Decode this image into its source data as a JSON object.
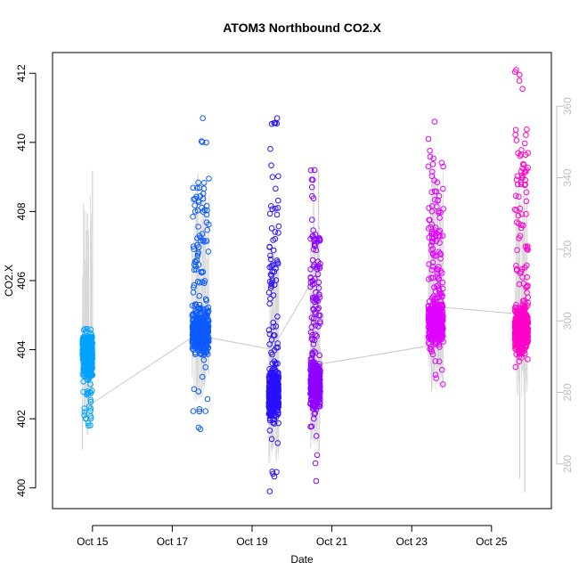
{
  "chart_data": {
    "type": "scatter",
    "title": "ATOM3 Northbound CO2.X",
    "xlabel": "Date",
    "ylabel": "CO2.X",
    "x_ticks": [
      "Oct 15",
      "Oct 17",
      "Oct 19",
      "Oct 21",
      "Oct 23",
      "Oct 25"
    ],
    "x_range": [
      "2016-10-14 00:00",
      "2016-10-26 12:00"
    ],
    "ylim": [
      399.4,
      412.6
    ],
    "y_ticks": [
      400,
      402,
      404,
      406,
      408,
      410,
      412
    ],
    "y2_ticks": [
      260,
      280,
      300,
      320,
      340,
      360
    ],
    "y2_range": [
      247.5,
      375
    ],
    "y2_color": "#bdbdbd",
    "grid": false,
    "series": [
      {
        "color": "#00a2ff",
        "segment": {
          "start": "2016-10-14 18:00",
          "end": "2016-10-15 00:00"
        },
        "y_range": [
          401.8,
          404.6
        ],
        "y_center": 403.8
      },
      {
        "color": "#0d5bff",
        "segment": {
          "start": "2016-10-17 12:00",
          "end": "2016-10-17 22:00"
        },
        "y_range": [
          401.7,
          410.7
        ],
        "y_center": 404.5
      },
      {
        "color": "#2a10ff",
        "segment": {
          "start": "2016-10-19 10:00",
          "end": "2016-10-19 16:00"
        },
        "y_range": [
          399.9,
          410.7
        ],
        "y_center": 402.7
      },
      {
        "color": "#8e00ff",
        "segment": {
          "start": "2016-10-20 11:00",
          "end": "2016-10-20 17:00"
        },
        "y_range": [
          400.2,
          409.2
        ],
        "y_center": 403.0
      },
      {
        "color": "#e000ff",
        "segment": {
          "start": "2016-10-23 10:00",
          "end": "2016-10-23 19:00"
        },
        "y_range": [
          403.0,
          410.6
        ],
        "y_center": 404.8
      },
      {
        "color": "#ff00c8",
        "segment": {
          "start": "2016-10-25 14:00",
          "end": "2016-10-25 22:00"
        },
        "y_range": [
          403.5,
          412.1
        ],
        "y_center": 404.6
      }
    ],
    "secondary_series": {
      "color": "#c8c8c8",
      "connector_points": [
        {
          "x": "2016-10-15 00:00",
          "y2": 277
        },
        {
          "x": "2016-10-17 14:00",
          "y2": 296
        },
        {
          "x": "2016-10-19 12:00",
          "y2": 292
        },
        {
          "x": "2016-10-20 12:00",
          "y2": 311
        },
        {
          "x": "2016-10-20 18:00",
          "y2": 288
        },
        {
          "x": "2016-10-23 10:00",
          "y2": 293
        },
        {
          "x": "2016-10-23 14:00",
          "y2": 304
        },
        {
          "x": "2016-10-25 14:00",
          "y2": 302
        }
      ],
      "spikes": [
        {
          "x": "2016-10-14 18:00",
          "y2_range": [
            264,
            301
          ]
        },
        {
          "x": "2016-10-14 21:00",
          "y2_range": [
            268,
            330
          ]
        },
        {
          "x": "2016-10-15 00:00",
          "y2_range": [
            270,
            342
          ]
        },
        {
          "x": "2016-10-17 12:00",
          "y2_range": [
            285,
            321
          ]
        },
        {
          "x": "2016-10-17 20:00",
          "y2_range": [
            288,
            336
          ]
        },
        {
          "x": "2016-10-19 13:00",
          "y2_range": [
            279,
            309
          ]
        },
        {
          "x": "2016-10-20 13:00",
          "y2_range": [
            282,
            343
          ]
        },
        {
          "x": "2016-10-20 16:00",
          "y2_range": [
            286,
            342
          ]
        },
        {
          "x": "2016-10-23 12:00",
          "y2_range": [
            280,
            322
          ]
        },
        {
          "x": "2016-10-23 16:00",
          "y2_range": [
            287,
            306
          ]
        },
        {
          "x": "2016-10-25 17:00",
          "y2_range": [
            256,
            314
          ]
        },
        {
          "x": "2016-10-25 20:00",
          "y2_range": [
            252,
            300
          ]
        }
      ]
    }
  }
}
